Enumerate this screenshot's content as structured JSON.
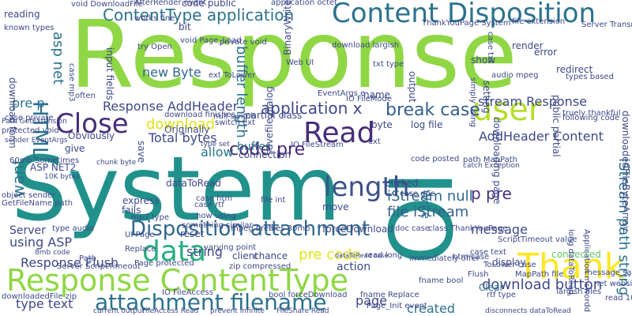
{
  "wordcloud": {
    "background": "#ffffff",
    "words": [
      {
        "text": "Response",
        "color": "#8fd744"
      },
      {
        "text": "System",
        "color": "#21918c"
      },
      {
        "text": "IO",
        "color": "#21918c"
      },
      {
        "text": "Content Disposition",
        "color": "#2c728e"
      },
      {
        "text": "Response ContentType",
        "color": "#8fd744"
      },
      {
        "text": "data",
        "color": "#28ae80"
      },
      {
        "text": "length",
        "color": "#3b528b"
      },
      {
        "text": "Thank",
        "color": "#fde725"
      },
      {
        "text": "user",
        "color": "#b5de2b"
      },
      {
        "text": "Read",
        "color": "#472d7b"
      },
      {
        "text": "Close",
        "color": "#472d7b"
      },
      {
        "text": "attachment filename",
        "color": "#2c728e"
      },
      {
        "text": "Disposition attachment",
        "color": "#31688e"
      },
      {
        "text": "ContentType application",
        "color": "#2c728e"
      },
      {
        "text": "HTML",
        "color": "#2c728e"
      },
      {
        "text": "code pre",
        "color": "#482878"
      },
      {
        "text": "application x",
        "color": "#3e4989"
      },
      {
        "text": "break case",
        "color": "#355f8d"
      },
      {
        "text": "stream Response",
        "color": "#3e4989"
      },
      {
        "text": "iStream null",
        "color": "#31688e"
      },
      {
        "text": "file iStream",
        "color": "#355f8d"
      },
      {
        "text": "download",
        "color": "#dde318"
      },
      {
        "text": "download button",
        "color": "#3e4989"
      },
      {
        "text": "Response AddHeader",
        "color": "#3e4989"
      },
      {
        "text": "Response Flush",
        "color": "#3e4989"
      },
      {
        "text": "type text",
        "color": "#3e4989"
      },
      {
        "text": "Total bytes",
        "color": "#3e4989"
      },
      {
        "text": "new Byte",
        "color": "#31688e"
      },
      {
        "text": "buffer length",
        "color": "#2c728e"
      },
      {
        "text": "pre p",
        "color": "#2c728e"
      },
      {
        "text": "asp net",
        "color": "#2c728e"
      },
      {
        "text": "AddHeader Content",
        "color": "#3e4989"
      },
      {
        "text": "iStream path string",
        "color": "#2c728e"
      },
      {
        "text": "p pre",
        "color": "#472d7b"
      },
      {
        "text": "message",
        "color": "#3e4989"
      },
      {
        "text": "pre code",
        "color": "#dde318"
      },
      {
        "text": "page",
        "color": "#3e4989"
      },
      {
        "text": "using ASP",
        "color": "#3e4989"
      },
      {
        "text": "Server",
        "color": "#3e4989"
      },
      {
        "text": "want",
        "color": "#2c728e"
      },
      {
        "text": "string",
        "color": "#3e4989"
      },
      {
        "text": "buffer",
        "color": "#2c728e"
      },
      {
        "text": "allow",
        "color": "#2c728e"
      },
      {
        "text": "log file",
        "color": "#3e4989"
      },
      {
        "text": "created",
        "color": "#2c728e"
      },
      {
        "text": "Write",
        "color": "#2c728e"
      },
      {
        "text": "move",
        "color": "#3e4989"
      },
      {
        "text": "action",
        "color": "#3e4989"
      },
      {
        "text": "forceDownload",
        "color": "#3e4989"
      },
      {
        "text": "Clear",
        "color": "#2c728e"
      },
      {
        "text": "Flush",
        "color": "#3e4989"
      },
      {
        "text": "connected",
        "color": "#5ec962"
      },
      {
        "text": "display",
        "color": "#3e4989"
      },
      {
        "text": "clicked",
        "color": "#3e4989"
      },
      {
        "text": "client",
        "color": "#3e4989"
      },
      {
        "text": "chance",
        "color": "#3e4989"
      },
      {
        "text": "fails",
        "color": "#3e4989"
      },
      {
        "text": "reset",
        "color": "#3e4989"
      },
      {
        "text": "express",
        "color": "#3e4989"
      },
      {
        "text": "connection",
        "color": "#3e4989"
      },
      {
        "text": "Originally",
        "color": "#3e4989"
      },
      {
        "text": "Obviously",
        "color": "#3e4989"
      },
      {
        "text": "dataToRead",
        "color": "#3e4989"
      },
      {
        "text": "ASP NET2",
        "color": "#3e4989"
      },
      {
        "text": "give",
        "color": "#3e4989"
      },
      {
        "text": "byte",
        "color": "#3e4989"
      },
      {
        "text": "name",
        "color": "#3e4989"
      },
      {
        "text": "output",
        "color": "#3e4989"
      },
      {
        "text": "show",
        "color": "#3e4989"
      },
      {
        "text": "redirect",
        "color": "#3e4989"
      },
      {
        "text": "error",
        "color": "#3e4989"
      },
      {
        "text": "render",
        "color": "#3e4989"
      },
      {
        "text": "following code",
        "color": "#3e4989"
      },
      {
        "text": "public partial",
        "color": "#3e4989"
      },
      {
        "text": "setting",
        "color": "#3e4989"
      },
      {
        "text": "case txt",
        "color": "#3e4989"
      },
      {
        "text": "BinaryWrite",
        "color": "#3e4989"
      },
      {
        "text": "partial class",
        "color": "#3e4989"
      },
      {
        "text": "input fields",
        "color": "#3e4989"
      },
      {
        "text": "bit",
        "color": "#3e4989"
      },
      {
        "text": "code public",
        "color": "#3e4989"
      },
      {
        "text": "reading",
        "color": "#3e4989"
      },
      {
        "text": "known types",
        "color": "#3e4989"
      },
      {
        "text": "often",
        "color": "#3e4989"
      },
      {
        "text": "save",
        "color": "#3e4989"
      },
      {
        "text": "ext",
        "color": "#3e4989"
      },
      {
        "text": "savefile dialog",
        "color": "#3e4989"
      },
      {
        "text": "code posted",
        "color": "#3e4989"
      },
      {
        "text": "downloading page",
        "color": "#3e4989"
      },
      {
        "text": "downloadedFileByteArray",
        "color": "#3e4989"
      },
      {
        "text": "immediately offer",
        "color": "#3e4989"
      },
      {
        "text": "void DownloadFile",
        "color": "#3e4989"
      },
      {
        "text": "AfterRender event",
        "color": "#3e4989"
      },
      {
        "text": "application octet",
        "color": "#3e4989"
      },
      {
        "text": "download form",
        "color": "#3e4989"
      },
      {
        "text": "Path GetExtension",
        "color": "#3e4989"
      },
      {
        "text": "protected void",
        "color": "#3e4989"
      },
      {
        "text": "download largish",
        "color": "#3e4989"
      },
      {
        "text": "ThankYouPage System",
        "color": "#3e4989"
      },
      {
        "text": "file extension",
        "color": "#3e4989"
      },
      {
        "text": "Server TransmitFile",
        "color": "#3e4989"
      },
      {
        "text": "works fine",
        "color": "#3e4989"
      },
      {
        "text": "void Page_Load",
        "color": "#3e4989"
      },
      {
        "text": "try Open",
        "color": "#3e4989"
      },
      {
        "text": "private void",
        "color": "#3e4989"
      },
      {
        "text": "ext ToLower",
        "color": "#3e4989"
      },
      {
        "text": "Web UI",
        "color": "#3e4989"
      },
      {
        "text": "txt type",
        "color": "#3e4989"
      },
      {
        "text": "case mp3",
        "color": "#3e4989"
      },
      {
        "text": "audio mpeg",
        "color": "#3e4989"
      },
      {
        "text": "types based",
        "color": "#3e4989"
      },
      {
        "text": "truely thankful",
        "color": "#3e4989"
      },
      {
        "text": "EventArgs e",
        "color": "#3e4989"
      },
      {
        "text": "IO FileMode",
        "color": "#3e4989"
      },
      {
        "text": "IO FileStream",
        "color": "#3e4989"
      },
      {
        "text": "null switch",
        "color": "#3e4989"
      },
      {
        "text": "switch ext",
        "color": "#3e4989"
      },
      {
        "text": "download finishes",
        "color": "#3e4989"
      },
      {
        "text": "case private",
        "color": "#3e4989"
      },
      {
        "text": "sender EventArgs",
        "color": "#3e4989"
      },
      {
        "text": "60mb Sometimes",
        "color": "#3e4989"
      },
      {
        "text": "10K bytes",
        "color": "#3e4989"
      },
      {
        "text": "object sender",
        "color": "#3e4989"
      },
      {
        "text": "GetFileName path",
        "color": "#3e4989"
      },
      {
        "text": "chunk byte",
        "color": "#3e4989"
      },
      {
        "text": "type set",
        "color": "#3e4989"
      },
      {
        "text": "path MapPath",
        "color": "#3e4989"
      },
      {
        "text": "catch Exception",
        "color": "#3e4989"
      },
      {
        "text": "file int",
        "color": "#3e4989"
      },
      {
        "text": "case htm",
        "color": "#3e4989"
      },
      {
        "text": "case rtf",
        "color": "#3e4989"
      },
      {
        "text": "mp3 type",
        "color": "#3e4989"
      },
      {
        "text": "now using",
        "color": "#3e4989"
      },
      {
        "text": "something similar",
        "color": "#3e4989"
      },
      {
        "text": "varying point",
        "color": "#3e4989"
      },
      {
        "text": "mpeg break",
        "color": "#3e4989"
      },
      {
        "text": "files 30mb",
        "color": "#3e4989"
      },
      {
        "text": "doc case",
        "color": "#3e4989"
      },
      {
        "text": "class ThankYouPage",
        "color": "#3e4989"
      },
      {
        "text": "ScriptTimeout value",
        "color": "#3e4989"
      },
      {
        "text": "case text",
        "color": "#3e4989"
      },
      {
        "text": "Application mswordd",
        "color": "#3e4989"
      },
      {
        "text": "long dataToRead",
        "color": "#3e4989"
      },
      {
        "text": "message saying",
        "color": "#3e4989"
      },
      {
        "text": "net website",
        "color": "#3e4989"
      },
      {
        "text": "largish files",
        "color": "#3e4989"
      },
      {
        "text": "read 10K",
        "color": "#3e4989"
      },
      {
        "text": "MapPath file",
        "color": "#3e4989"
      },
      {
        "text": "rtf type",
        "color": "#3e4989"
      },
      {
        "text": "ToLower case",
        "color": "#3e4989"
      },
      {
        "text": "htm case",
        "color": "#3e4989"
      },
      {
        "text": "read long",
        "color": "#3e4989"
      },
      {
        "text": "dataToRead case",
        "color": "#3e4989"
      },
      {
        "text": "fname bool",
        "color": "#3e4989"
      },
      {
        "text": "fname Replace",
        "color": "#3e4989"
      },
      {
        "text": "Page_Init event",
        "color": "#3e4989"
      },
      {
        "text": "bool forceDownload",
        "color": "#3e4989"
      },
      {
        "text": "zip compressed",
        "color": "#3e4989"
      },
      {
        "text": "Page protected",
        "color": "#3e4989"
      },
      {
        "text": "IO FileAccess",
        "color": "#3e4989"
      },
      {
        "text": "Server ScriptTimeout",
        "color": "#3e4989"
      },
      {
        "text": "UI Page",
        "color": "#3e4989"
      },
      {
        "text": "Replace",
        "color": "#3e4989"
      },
      {
        "text": "Path",
        "color": "#3e4989"
      },
      {
        "text": "8mb code",
        "color": "#3e4989"
      },
      {
        "text": "downloadedFile zip",
        "color": "#3e4989"
      },
      {
        "text": "current output",
        "color": "#3e4989"
      },
      {
        "text": "FileAccess Read",
        "color": "#3e4989"
      },
      {
        "text": "prevent infinite",
        "color": "#3e4989"
      },
      {
        "text": "FileShare Read",
        "color": "#3e4989"
      },
      {
        "text": "disconnects dataToRead",
        "color": "#3e4989"
      },
      {
        "text": "simply using",
        "color": "#3e4989"
      },
      {
        "text": "type audio",
        "color": "#3e4989"
      },
      {
        "text": "case doc",
        "color": "#3e4989"
      }
    ]
  }
}
